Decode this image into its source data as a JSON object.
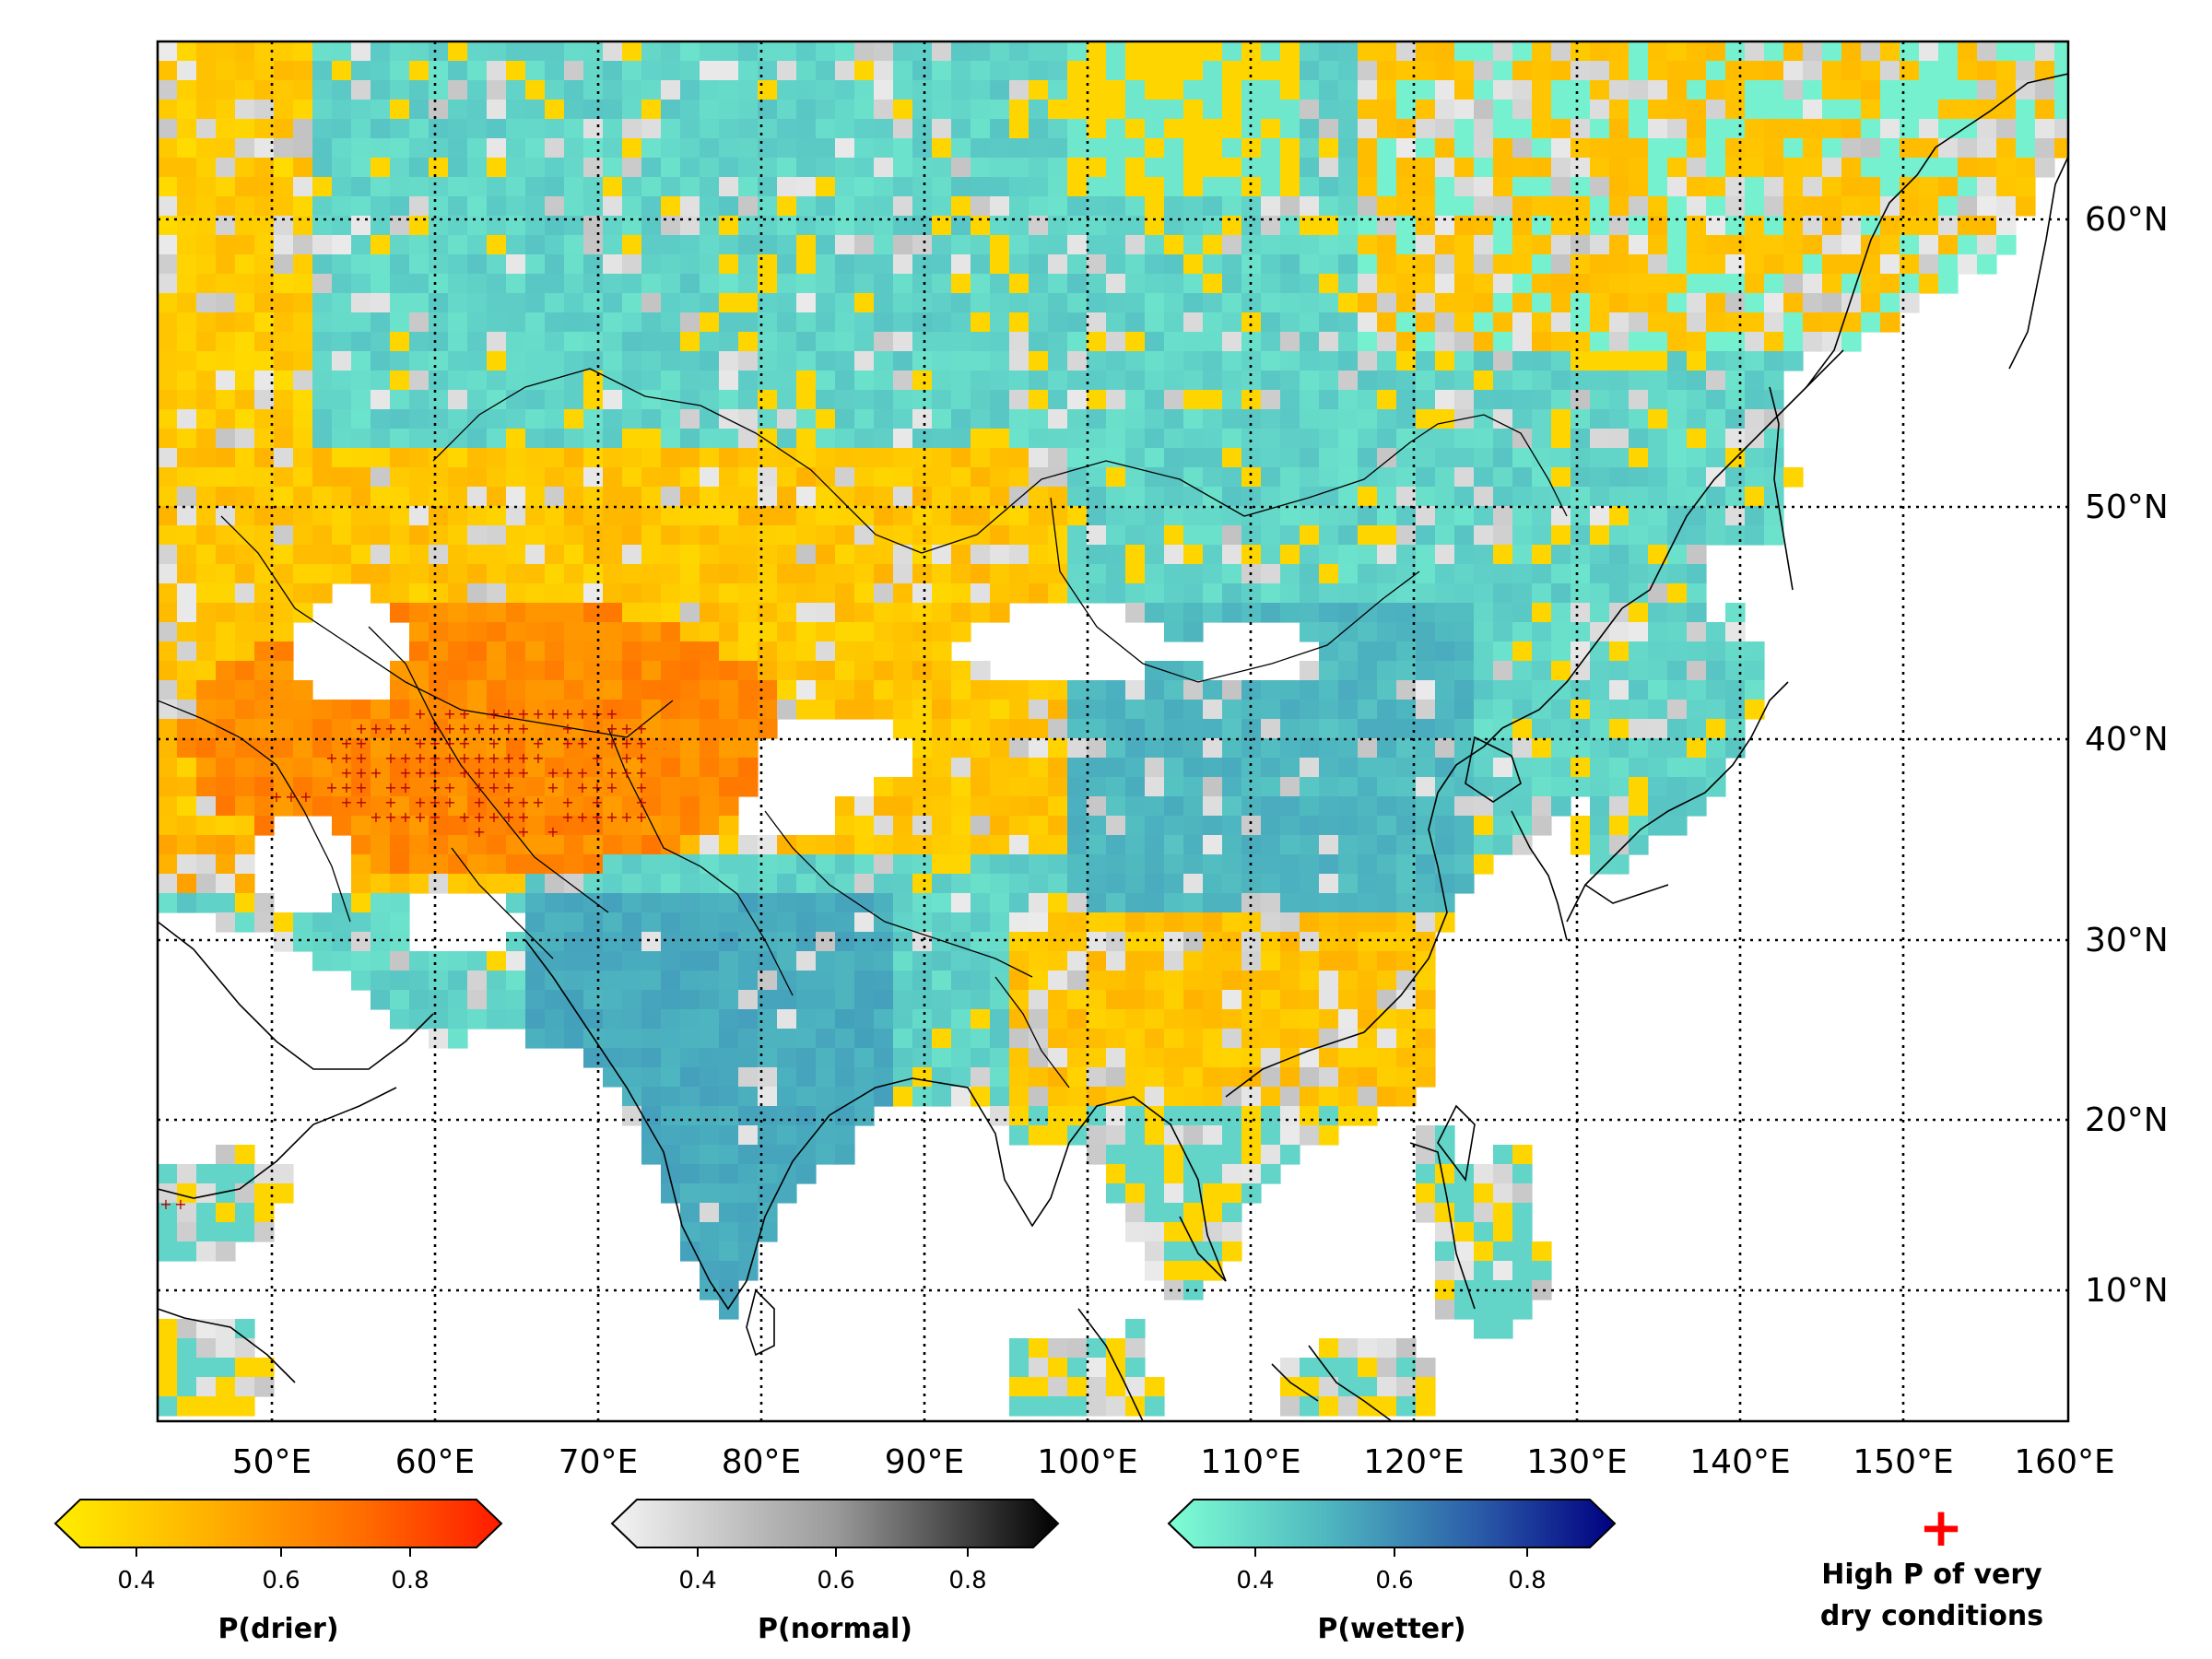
{
  "map": {
    "lon_range": [
      43,
      160
    ],
    "lat_range": [
      3,
      66
    ],
    "lon_ticks": [
      "50°E",
      "60°E",
      "70°E",
      "80°E",
      "90°E",
      "100°E",
      "110°E",
      "120°E",
      "130°E",
      "140°E",
      "150°E",
      "160°E"
    ],
    "lat_ticks": [
      "60°N",
      "50°N",
      "40°N",
      "30°N",
      "20°N",
      "10°N"
    ],
    "gridlines": "dotted black",
    "categories": [
      {
        "name": "drier",
        "color_low": "#ffee00",
        "color_high": "#ff1a00"
      },
      {
        "name": "normal",
        "color_low": "#f4f4f4",
        "color_high": "#000000"
      },
      {
        "name": "wetter",
        "color_low": "#7fffd4",
        "color_high": "#000080"
      }
    ],
    "regions": [
      {
        "category": "wetter",
        "area": "Siberia / Central Russia",
        "probability": 0.4
      },
      {
        "category": "drier",
        "area": "Western Russia / Kazakhstan",
        "probability": 0.45
      },
      {
        "category": "drier",
        "area": "Central Asia / Iran / Afghanistan",
        "probability": 0.6
      },
      {
        "category": "drier",
        "area": "Northeast Siberia",
        "probability": 0.4
      },
      {
        "category": "wetter",
        "area": "China / Mongolia",
        "probability": 0.45
      },
      {
        "category": "wetter",
        "area": "India",
        "probability": 0.5
      },
      {
        "category": "drier",
        "area": "South China",
        "probability": 0.45
      },
      {
        "category": "normal",
        "area": "scattered",
        "probability": 0.38
      }
    ]
  },
  "colorbars": [
    {
      "label": "P(drier)",
      "ticks": [
        "0.4",
        "0.6",
        "0.8"
      ],
      "tick_values": [
        0.4,
        0.6,
        0.8
      ],
      "range": [
        0.33,
        0.93
      ]
    },
    {
      "label": "P(normal)",
      "ticks": [
        "0.4",
        "0.6",
        "0.8"
      ],
      "tick_values": [
        0.4,
        0.6,
        0.8
      ],
      "range": [
        0.33,
        0.93
      ]
    },
    {
      "label": "P(wetter)",
      "ticks": [
        "0.4",
        "0.6",
        "0.8"
      ],
      "tick_values": [
        0.4,
        0.6,
        0.8
      ],
      "range": [
        0.33,
        0.93
      ]
    }
  ],
  "legend": {
    "symbol": "+",
    "symbol_color": "#ff0000",
    "line1": "High P of very",
    "line2": "dry conditions"
  }
}
